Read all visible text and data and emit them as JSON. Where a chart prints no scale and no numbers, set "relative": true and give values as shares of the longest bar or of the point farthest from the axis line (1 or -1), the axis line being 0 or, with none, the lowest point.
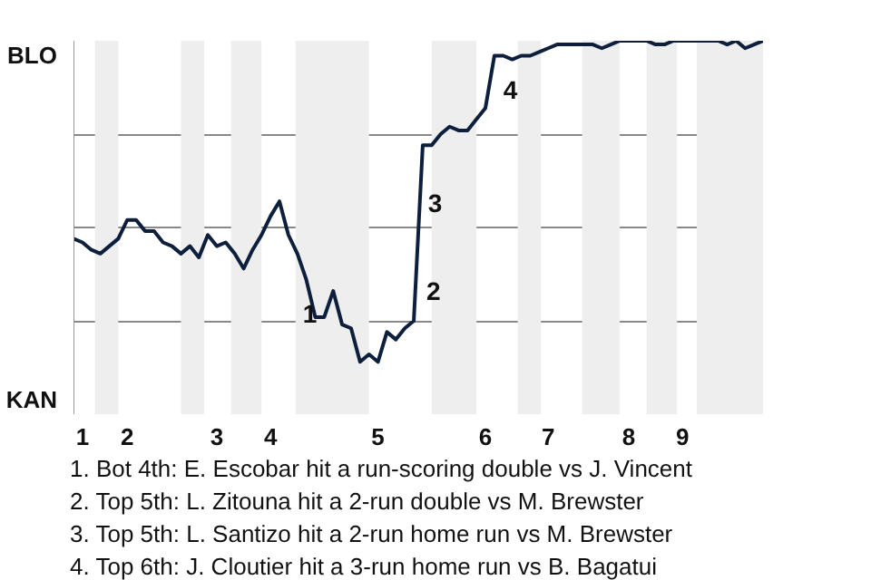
{
  "chart_data": {
    "type": "line",
    "relative": true,
    "categories": [
      null,
      "1",
      null,
      null,
      null,
      null,
      "2",
      null,
      null,
      null,
      null,
      null,
      null,
      null,
      null,
      null,
      "3",
      null,
      null,
      null,
      null,
      null,
      "4",
      null,
      null,
      null,
      null,
      null,
      null,
      null,
      null,
      null,
      null,
      null,
      "5",
      null,
      null,
      null,
      null,
      null,
      null,
      null,
      null,
      null,
      null,
      null,
      "6",
      null,
      null,
      null,
      null,
      null,
      null,
      "7",
      null,
      null,
      null,
      null,
      null,
      null,
      null,
      null,
      "8",
      null,
      null,
      null,
      null,
      null,
      "9",
      null,
      null,
      null,
      null,
      null,
      null,
      null,
      null,
      null
    ],
    "series": [
      {
        "color": "#0d1f3c",
        "values": [
          0.47,
          0.46,
          0.44,
          0.43,
          0.45,
          0.47,
          0.52,
          0.52,
          0.49,
          0.49,
          0.46,
          0.45,
          0.43,
          0.45,
          0.42,
          0.48,
          0.45,
          0.46,
          0.43,
          0.39,
          0.44,
          0.48,
          0.53,
          0.57,
          0.48,
          0.43,
          0.36,
          0.26,
          0.26,
          0.33,
          0.24,
          0.23,
          0.14,
          0.16,
          0.14,
          0.22,
          0.2,
          0.23,
          0.25,
          0.72,
          0.72,
          0.75,
          0.77,
          0.76,
          0.76,
          0.79,
          0.82,
          0.96,
          0.96,
          0.95,
          0.96,
          0.96,
          0.97,
          0.98,
          0.99,
          0.99,
          0.99,
          0.99,
          0.99,
          0.98,
          0.99,
          1.0,
          1.0,
          1.0,
          1.0,
          0.99,
          0.99,
          1.0,
          1.0,
          1.0,
          1.0,
          1.0,
          1.0,
          0.99,
          1.0,
          0.98,
          0.99,
          1.0
        ]
      }
    ],
    "grid": "y",
    "marker": "none",
    "line_style": "solid",
    "annotations": [
      "BLO",
      "KAN",
      "1",
      "2",
      "3",
      "4",
      "1. Bot 4th: E. Escobar hit a run-scoring double vs J. Vincent",
      "2. Top 5th: L. Zitouna hit a 2-run double vs M. Brewster",
      "3. Top 5th: L. Santizo hit a 2-run home run vs M. Brewster",
      "4. Top 6th: J. Cloutier hit a 3-run home run vs B. Bagatui"
    ]
  }
}
